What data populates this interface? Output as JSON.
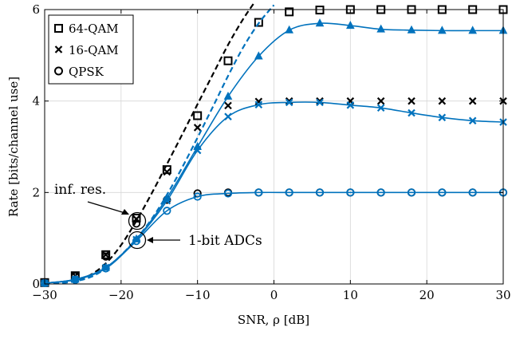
{
  "chart_data": {
    "type": "line",
    "xlabel": "SNR, ρ [dB]",
    "ylabel": "Rate [bits/channel use]",
    "xlim": [
      -30,
      30
    ],
    "ylim": [
      0,
      6
    ],
    "xticks": [
      -30,
      -20,
      -10,
      0,
      10,
      20,
      30
    ],
    "yticks": [
      0,
      2,
      4,
      6
    ],
    "xtick_labels": [
      "−30",
      "−20",
      "−10",
      "0",
      "10",
      "20",
      "30"
    ],
    "ytick_labels": [
      "0",
      "2",
      "4",
      "6"
    ],
    "grid": true,
    "legend": {
      "placement": "top-left",
      "entries": [
        {
          "label": "64-QAM",
          "marker": "square"
        },
        {
          "label": "16-QAM",
          "marker": "cross"
        },
        {
          "label": "QPSK",
          "marker": "circle"
        }
      ]
    },
    "annotations": [
      {
        "text": "inf. res.",
        "x": -25.5,
        "y": 2.7
      },
      {
        "text": "1-bit ADCs",
        "x": -9.5,
        "y": 1.0
      }
    ],
    "colors": {
      "infinite_resolution": "#000000",
      "one_bit": "#0072BD"
    },
    "series": [
      {
        "resolution": "infinite",
        "modulation": "gaussian-bound",
        "style": "dashed",
        "x": [
          -30,
          -28,
          -26,
          -24,
          -22,
          -20,
          -18,
          -16,
          -14,
          -12,
          -10,
          -8,
          -6,
          -4,
          -2,
          0
        ],
        "y": [
          0.01,
          0.03,
          0.08,
          0.2,
          0.45,
          0.85,
          1.38,
          1.98,
          2.62,
          3.27,
          3.93,
          4.58,
          5.23,
          5.8,
          6.3,
          6.9
        ]
      },
      {
        "resolution": "infinite",
        "modulation": "64-QAM",
        "marker": "square",
        "x": [
          -30,
          -26,
          -22,
          -18,
          -14,
          -10,
          -6,
          -2,
          2,
          6,
          10,
          14,
          18,
          22,
          26,
          30
        ],
        "y": [
          0.03,
          0.18,
          0.64,
          1.44,
          2.5,
          3.68,
          4.88,
          5.72,
          5.95,
          5.99,
          6.0,
          6.0,
          6.0,
          6.0,
          6.0,
          6.0
        ]
      },
      {
        "resolution": "infinite",
        "modulation": "16-QAM",
        "marker": "cross",
        "x": [
          -30,
          -26,
          -22,
          -18,
          -14,
          -10,
          -6,
          -2,
          2,
          6,
          10,
          14,
          18,
          22,
          26,
          30
        ],
        "y": [
          0.03,
          0.18,
          0.64,
          1.42,
          2.45,
          3.42,
          3.9,
          3.99,
          4.0,
          4.0,
          4.0,
          4.0,
          4.0,
          4.0,
          4.0,
          4.0
        ]
      },
      {
        "resolution": "infinite",
        "modulation": "QPSK",
        "marker": "circle",
        "x": [
          -30,
          -26,
          -22,
          -18,
          -14,
          -10,
          -6,
          -2,
          2,
          6,
          10,
          14,
          18,
          22,
          26,
          30
        ],
        "y": [
          0.03,
          0.17,
          0.6,
          1.32,
          1.84,
          1.98,
          2.0,
          2.0,
          2.0,
          2.0,
          2.0,
          2.0,
          2.0,
          2.0,
          2.0,
          2.0
        ]
      },
      {
        "resolution": "1-bit",
        "modulation": "gaussian-bound",
        "style": "dashed",
        "x": [
          -30,
          -28,
          -26,
          -24,
          -22,
          -20,
          -18,
          -16,
          -14,
          -12,
          -10,
          -8,
          -6,
          -4,
          -2,
          0
        ],
        "y": [
          0.01,
          0.02,
          0.06,
          0.15,
          0.34,
          0.63,
          0.99,
          1.42,
          1.95,
          2.55,
          3.2,
          3.87,
          4.55,
          5.18,
          5.7,
          6.1
        ]
      },
      {
        "resolution": "1-bit",
        "modulation": "64-QAM",
        "marker": "triangle",
        "x": [
          -30,
          -26,
          -22,
          -18,
          -14,
          -10,
          -6,
          -2,
          2,
          6,
          10,
          14,
          18,
          22,
          26,
          30
        ],
        "y": [
          0.02,
          0.1,
          0.36,
          0.98,
          1.88,
          3.0,
          4.1,
          4.98,
          5.55,
          5.7,
          5.65,
          5.57,
          5.55,
          5.54,
          5.54,
          5.54
        ]
      },
      {
        "resolution": "1-bit",
        "modulation": "16-QAM",
        "marker": "cross",
        "x": [
          -30,
          -26,
          -22,
          -18,
          -14,
          -10,
          -6,
          -2,
          2,
          6,
          10,
          14,
          18,
          22,
          26,
          30
        ],
        "y": [
          0.02,
          0.1,
          0.36,
          0.97,
          1.82,
          2.92,
          3.66,
          3.92,
          3.97,
          3.97,
          3.91,
          3.85,
          3.74,
          3.64,
          3.57,
          3.54
        ]
      },
      {
        "resolution": "1-bit",
        "modulation": "QPSK",
        "marker": "circle",
        "x": [
          -30,
          -26,
          -22,
          -18,
          -14,
          -10,
          -6,
          -2,
          2,
          6,
          10,
          14,
          18,
          22,
          26,
          30
        ],
        "y": [
          0.02,
          0.09,
          0.34,
          0.94,
          1.6,
          1.91,
          1.98,
          2.0,
          2.0,
          2.0,
          2.0,
          2.0,
          2.0,
          2.0,
          2.0,
          2.0
        ]
      }
    ]
  }
}
